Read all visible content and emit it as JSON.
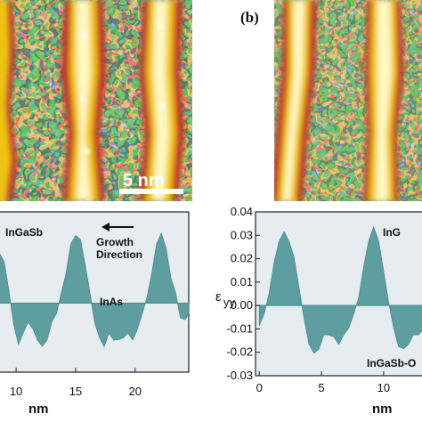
{
  "panel_b_letter": "(b)",
  "scale_bar_label": "5 nm",
  "chart_data": [
    {
      "type": "area",
      "panel": "a (profile)",
      "xlabel": "nm",
      "x_ticks": [
        10,
        15,
        20
      ],
      "xlim": [
        8.5,
        24.5
      ],
      "ylim": [
        -0.031,
        0.041
      ],
      "annotations": [
        "InGaSb",
        "Growth Direction",
        "InAs"
      ],
      "fill_color": "#5f9ea0",
      "series": [
        {
          "x": [
            8.5,
            9.0,
            9.4,
            9.8,
            10.2,
            10.6,
            11.0,
            11.4,
            11.8,
            12.2,
            12.6,
            13.0,
            13.4,
            13.8,
            14.2,
            14.6,
            15.0,
            15.4,
            15.8,
            16.2,
            16.6,
            17.0,
            17.4,
            17.8,
            18.2,
            18.6,
            19.0,
            19.4,
            19.8,
            20.2,
            20.6,
            21.0,
            21.4,
            21.8,
            22.2,
            22.6,
            23.0,
            23.4,
            23.8,
            24.2,
            24.5
          ],
          "y": [
            0.024,
            0.018,
            0.006,
            -0.01,
            -0.018,
            -0.014,
            -0.008,
            -0.012,
            -0.016,
            -0.02,
            -0.016,
            -0.009,
            -0.004,
            0.004,
            0.014,
            0.026,
            0.031,
            0.028,
            0.018,
            0.004,
            -0.008,
            -0.016,
            -0.019,
            -0.014,
            -0.016,
            -0.017,
            -0.015,
            -0.014,
            -0.016,
            -0.012,
            -0.004,
            0.002,
            0.014,
            0.026,
            0.032,
            0.024,
            0.012,
            0.004,
            -0.006,
            -0.008,
            -0.004
          ]
        }
      ]
    },
    {
      "type": "area",
      "panel": "b (profile)",
      "xlabel": "nm",
      "ylabel": "εyy",
      "x_ticks": [
        0,
        5,
        10
      ],
      "y_ticks": [
        "0.04",
        "0.03",
        "0.02",
        "0.01",
        "0.00",
        "-0.01",
        "-0.02",
        "-0.03"
      ],
      "xlim": [
        -0.3,
        13.3
      ],
      "ylim": [
        -0.03,
        0.04
      ],
      "annotations": [
        "InG",
        "InGaSb-O"
      ],
      "fill_color": "#5f9ea0",
      "series": [
        {
          "x": [
            0.0,
            0.4,
            0.8,
            1.2,
            1.6,
            2.0,
            2.4,
            2.8,
            3.2,
            3.6,
            4.0,
            4.4,
            4.8,
            5.2,
            5.6,
            6.0,
            6.4,
            6.8,
            7.2,
            7.6,
            8.0,
            8.4,
            8.8,
            9.2,
            9.6,
            10.0,
            10.4,
            10.8,
            11.2,
            11.6,
            12.0,
            12.4,
            12.8,
            13.3
          ],
          "y": [
            -0.008,
            -0.004,
            0.006,
            0.018,
            0.028,
            0.031,
            0.028,
            0.02,
            0.008,
            -0.006,
            -0.016,
            -0.021,
            -0.018,
            -0.013,
            -0.012,
            -0.014,
            -0.016,
            -0.013,
            -0.009,
            -0.004,
            0.004,
            0.016,
            0.028,
            0.033,
            0.028,
            0.014,
            0.002,
            -0.01,
            -0.017,
            -0.019,
            -0.016,
            -0.013,
            -0.012,
            -0.01
          ]
        }
      ]
    }
  ]
}
